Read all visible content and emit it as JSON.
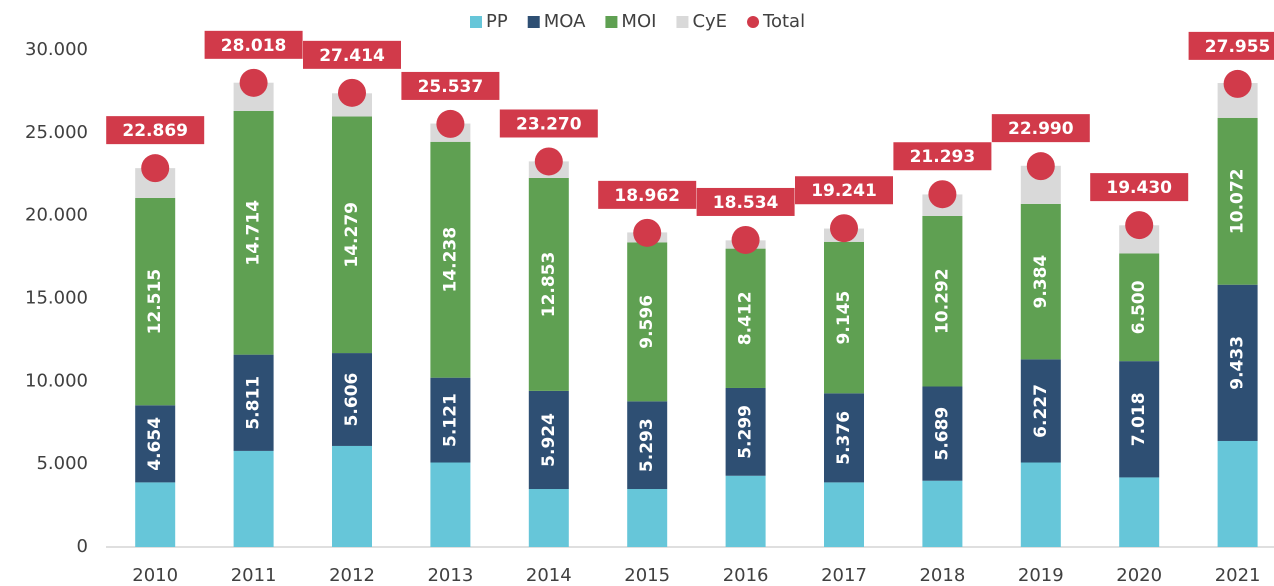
{
  "chart_data": {
    "type": "bar",
    "stacked": true,
    "categories": [
      "2010",
      "2011",
      "2012",
      "2013",
      "2014",
      "2015",
      "2016",
      "2017",
      "2018",
      "2019",
      "2020",
      "2021"
    ],
    "series": [
      {
        "name": "PP",
        "color": "#66c6d9",
        "values": [
          3900,
          5800,
          6100,
          5100,
          3500,
          3500,
          4300,
          3900,
          4000,
          5100,
          4200,
          6400
        ]
      },
      {
        "name": "MOA",
        "color": "#2e4f73",
        "values": [
          4654,
          5811,
          5606,
          5121,
          5924,
          5293,
          5299,
          5376,
          5689,
          6227,
          7018,
          9433
        ],
        "value_labels": [
          "4.654",
          "5.811",
          "5.606",
          "5.121",
          "5.924",
          "5.293",
          "5.299",
          "5.376",
          "5.689",
          "6.227",
          "7.018",
          "9.433"
        ]
      },
      {
        "name": "MOI",
        "color": "#5fa052",
        "values": [
          12515,
          14714,
          14279,
          14238,
          12853,
          9596,
          8412,
          9145,
          10292,
          9384,
          6500,
          10072
        ],
        "value_labels": [
          "12.515",
          "14.714",
          "14.279",
          "14.238",
          "12.853",
          "9.596",
          "8.412",
          "9.145",
          "10.292",
          "9.384",
          "6.500",
          "10.072"
        ]
      },
      {
        "name": "CyE",
        "color": "#d9d9d9",
        "values": [
          1800,
          1700,
          1400,
          1100,
          1000,
          600,
          500,
          800,
          1300,
          2300,
          1700,
          2100
        ]
      },
      {
        "name": "Total",
        "type": "dot",
        "color": "#d13a4a",
        "values": [
          22869,
          28018,
          27414,
          25537,
          23270,
          18962,
          18534,
          19241,
          21293,
          22990,
          19430,
          27955
        ],
        "value_labels": [
          "22.869",
          "28.018",
          "27.414",
          "25.537",
          "23.270",
          "18.962",
          "18.534",
          "19.241",
          "21.293",
          "22.990",
          "19.430",
          "27.955"
        ]
      }
    ],
    "ylim": [
      0,
      30000
    ],
    "yticks": [
      0,
      {
        "value": 5000,
        "label": "5.000"
      },
      {
        "value": 10000,
        "label": "10.000"
      },
      {
        "value": 15000,
        "label": "15.000"
      },
      {
        "value": 20000,
        "label": "20.000"
      },
      {
        "value": 25000,
        "label": "25.000"
      },
      {
        "value": 30000,
        "label": "30.000"
      }
    ],
    "legend": "top",
    "grid": false
  }
}
